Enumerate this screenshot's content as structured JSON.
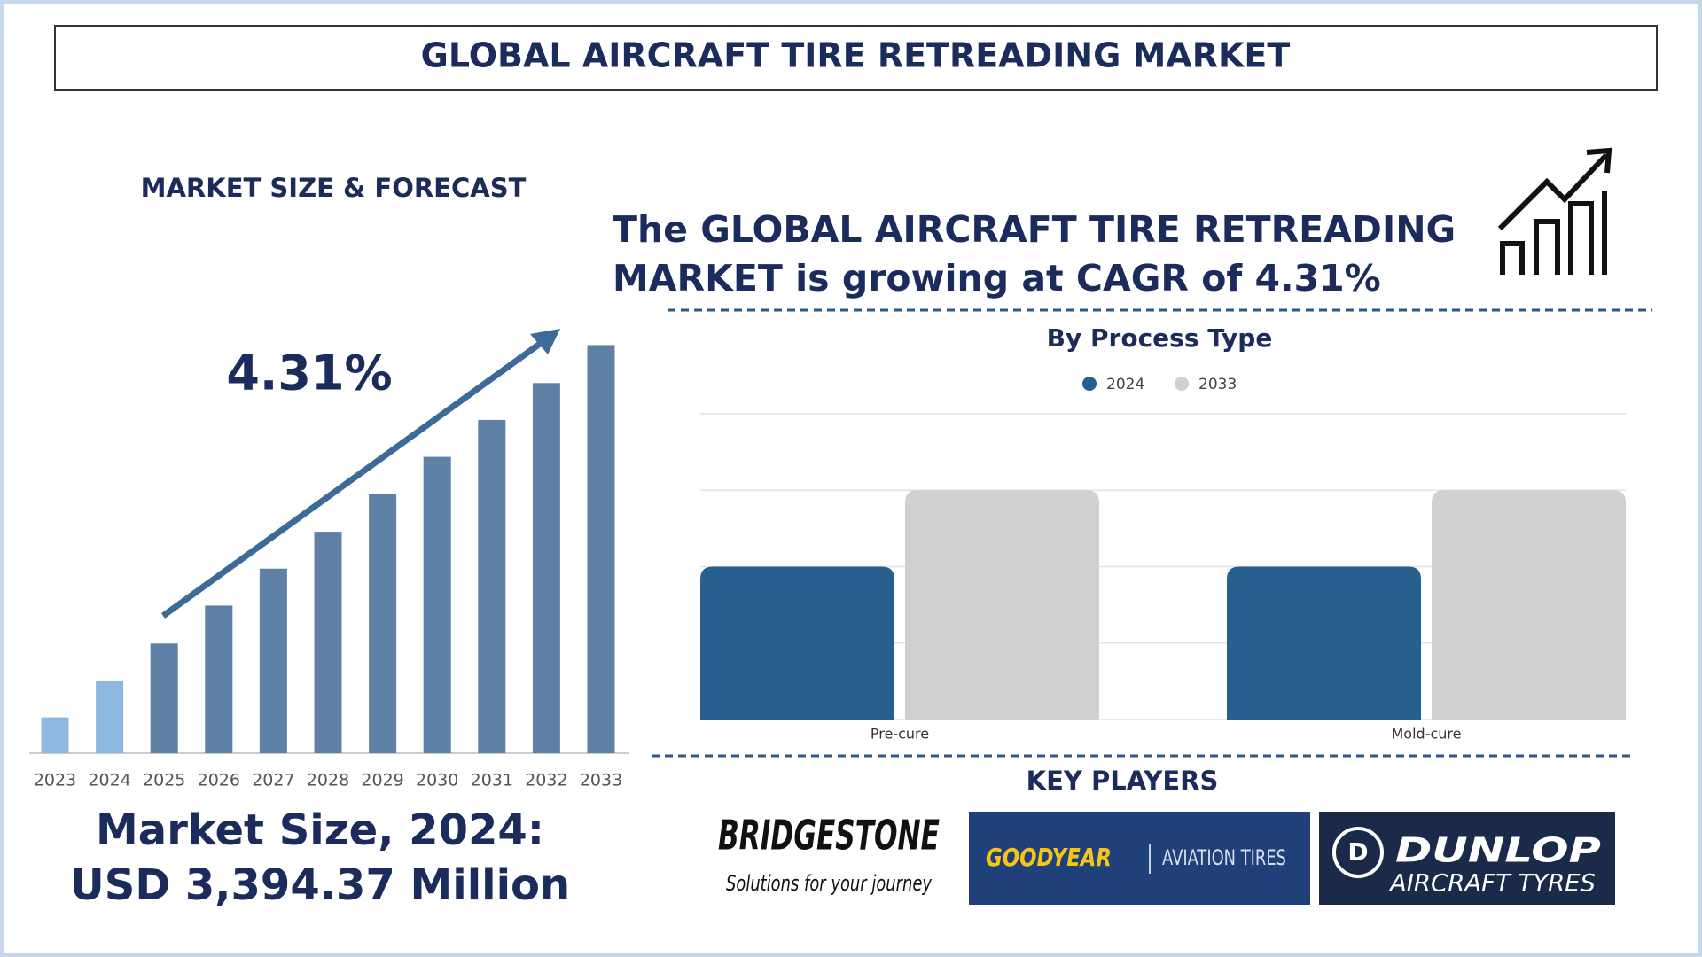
{
  "header": {
    "title": "GLOBAL AIRCRAFT TIRE RETREADING MARKET"
  },
  "headline": [
    "The GLOBAL AIRCRAFT TIRE RETREADING",
    "MARKET is growing at CAGR of 4.31%"
  ],
  "market_size": {
    "label": "Market Size, 2024:",
    "value": "USD 3,394.37 Million"
  },
  "chart_data": [
    {
      "type": "bar",
      "title": "MARKET SIZE & FORECAST",
      "annotation": "4.31%",
      "categories": [
        "2023",
        "2024",
        "2025",
        "2026",
        "2027",
        "2028",
        "2029",
        "2030",
        "2031",
        "2032",
        "2033"
      ],
      "values": [
        33,
        67,
        101,
        136,
        170,
        204,
        239,
        273,
        307,
        341,
        376
      ],
      "colors": [
        "#8fb8e0",
        "#8fb8e0",
        "#5f80a5",
        "#5f80a5",
        "#5f80a5",
        "#5f80a5",
        "#5f80a5",
        "#5f80a5",
        "#5f80a5",
        "#5f80a5",
        "#5f80a5"
      ],
      "ylim": [
        0,
        400
      ]
    },
    {
      "type": "grouped-bar",
      "title": "By Process Type",
      "categories": [
        "Pre-cure",
        "Mold-cure"
      ],
      "series": [
        {
          "name": "2024",
          "color": "#27608f",
          "values": [
            2,
            2
          ]
        },
        {
          "name": "2033",
          "color": "#d0d0d0",
          "values": [
            3,
            3
          ]
        }
      ],
      "ylim": [
        0,
        4
      ],
      "yticks": [
        0,
        1,
        2,
        3,
        4
      ],
      "grid": true
    }
  ],
  "key_players": {
    "title": "KEY PLAYERS",
    "players": [
      {
        "name": "BRIDGESTONE",
        "tagline": "Solutions for your journey"
      },
      {
        "name": "GOODYEAR",
        "tagline": "AVIATION TIRES"
      },
      {
        "name": "DUNLOP",
        "tagline": "AIRCRAFT TYRES"
      }
    ]
  }
}
